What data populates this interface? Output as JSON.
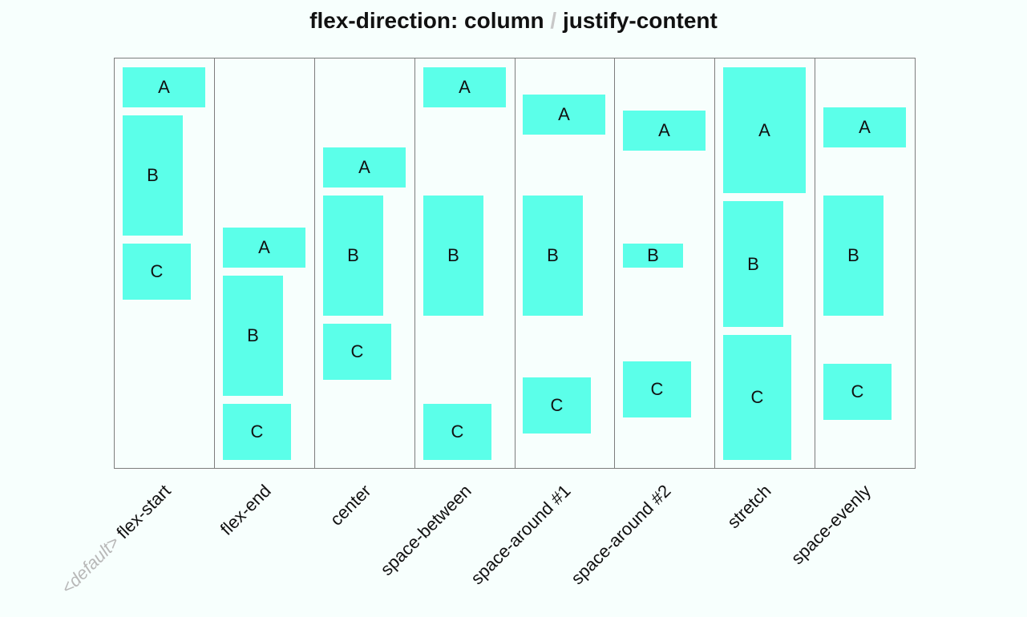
{
  "title": {
    "part1": "flex-direction: column",
    "separator": "/",
    "part2": "justify-content"
  },
  "columns": [
    {
      "prefix": "<default>",
      "label": "flex-start",
      "items": [
        "A",
        "B",
        "C"
      ]
    },
    {
      "prefix": "",
      "label": "flex-end",
      "items": [
        "A",
        "B",
        "C"
      ]
    },
    {
      "prefix": "",
      "label": "center",
      "items": [
        "A",
        "B",
        "C"
      ]
    },
    {
      "prefix": "",
      "label": "space-between",
      "items": [
        "A",
        "B",
        "C"
      ]
    },
    {
      "prefix": "",
      "label": "space-around #1",
      "items": [
        "A",
        "B",
        "C"
      ]
    },
    {
      "prefix": "",
      "label": "space-around #2",
      "items": [
        "A",
        "B",
        "C"
      ]
    },
    {
      "prefix": "",
      "label": "stretch",
      "items": [
        "A",
        "B",
        "C"
      ]
    },
    {
      "prefix": "",
      "label": "space-evenly",
      "items": [
        "A",
        "B",
        "C"
      ]
    }
  ],
  "colors": {
    "item_fill": "#5bffe9",
    "frame_border": "#7d7d7d",
    "background": "#f7fffd",
    "default_tag": "#b8b8b8"
  }
}
